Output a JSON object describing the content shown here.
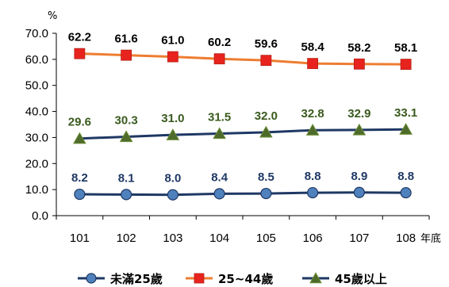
{
  "chart_data": {
    "type": "line",
    "categories": [
      "101",
      "102",
      "103",
      "104",
      "105",
      "106",
      "107",
      "108"
    ],
    "x_unit": "年底",
    "y_unit": "%",
    "ylim": [
      0,
      70
    ],
    "y_ticks": [
      "0.0",
      "10.0",
      "20.0",
      "30.0",
      "40.0",
      "50.0",
      "60.0",
      "70.0"
    ],
    "grid": false,
    "legend_position": "bottom",
    "series": [
      {
        "name": "未滿25歲",
        "values": [
          8.2,
          8.1,
          8.0,
          8.4,
          8.5,
          8.8,
          8.9,
          8.8
        ],
        "labels": [
          "8.2",
          "8.1",
          "8.0",
          "8.4",
          "8.5",
          "8.8",
          "8.9",
          "8.8"
        ],
        "line_color": "#1F3864",
        "marker": "circle",
        "marker_color": "#4F81BD",
        "label_color": "#1F3864"
      },
      {
        "name": "25~44歲",
        "values": [
          62.2,
          61.6,
          61.0,
          60.2,
          59.6,
          58.4,
          58.2,
          58.1
        ],
        "labels": [
          "62.2",
          "61.6",
          "61.0",
          "60.2",
          "59.6",
          "58.4",
          "58.2",
          "58.1"
        ],
        "line_color": "#ED7D31",
        "marker": "square",
        "marker_color": "#E8231E",
        "label_color": "#000000"
      },
      {
        "name": "45歲以上",
        "values": [
          29.6,
          30.3,
          31.0,
          31.5,
          32.0,
          32.8,
          32.9,
          33.1
        ],
        "labels": [
          "29.6",
          "30.3",
          "31.0",
          "31.5",
          "32.0",
          "32.8",
          "32.9",
          "33.1"
        ],
        "line_color": "#1F3864",
        "marker": "triangle",
        "marker_color": "#4E6B2B",
        "label_color": "#3A5A1E"
      }
    ]
  }
}
